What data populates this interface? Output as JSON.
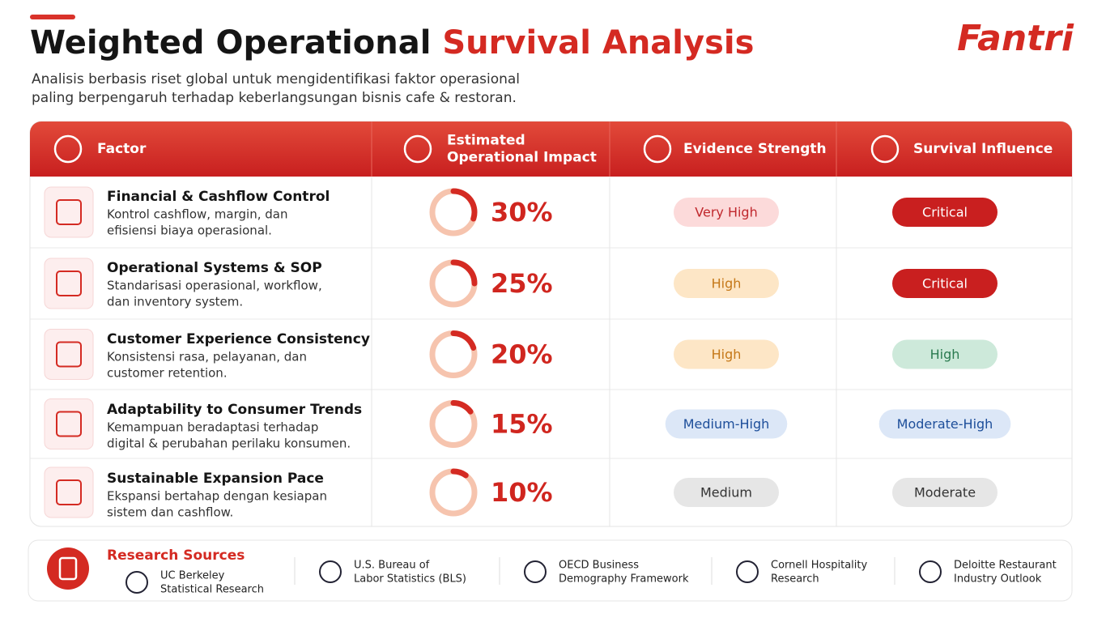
{
  "header": {
    "title_dark": "Weighted Operational",
    "title_red": "Survival Analysis",
    "subtitle_lines": [
      "Analisis berbasis riset global untuk mengidentifikasi faktor operasional",
      "paling berpengaruh terhadap keberlangsungan bisnis cafe & restoran."
    ],
    "logo": "Fantri"
  },
  "table": {
    "columns": [
      [
        "Factor"
      ],
      [
        "Estimated",
        "Operational Impact"
      ],
      [
        "Evidence Strength"
      ],
      [
        "Survival Influence"
      ]
    ],
    "rows": [
      {
        "factor": "Financial & Cashflow Control",
        "description": [
          "Kontrol cashflow, margin, dan",
          "efisiensi biaya operasional."
        ],
        "impact": {
          "value": 30,
          "label": "30%"
        },
        "evidence": {
          "label": "Very High",
          "color": "#fcdada",
          "text_color": "#c0282d"
        },
        "influence": {
          "label": "Critical",
          "color": "#c91f1f",
          "text_color": "#ffffff"
        }
      },
      {
        "factor": "Operational Systems & SOP",
        "description": [
          "Standarisasi operasional, workflow,",
          "dan inventory system."
        ],
        "impact": {
          "value": 25,
          "label": "25%"
        },
        "evidence": {
          "label": "High",
          "color": "#fde6c6",
          "text_color": "#c57818"
        },
        "influence": {
          "label": "Critical",
          "color": "#c91f1f",
          "text_color": "#ffffff"
        }
      },
      {
        "factor": "Customer Experience Consistency",
        "description": [
          "Konsistensi rasa, pelayanan, dan",
          "customer retention."
        ],
        "impact": {
          "value": 20,
          "label": "20%"
        },
        "evidence": {
          "label": "High",
          "color": "#fde6c6",
          "text_color": "#c57818"
        },
        "influence": {
          "label": "High",
          "color": "#cde9da",
          "text_color": "#2a7a4f"
        }
      },
      {
        "factor": "Adaptability to Consumer Trends",
        "description": [
          "Kemampuan beradaptasi terhadap",
          "digital & perubahan perilaku konsumen."
        ],
        "impact": {
          "value": 15,
          "label": "15%"
        },
        "evidence": {
          "label": "Medium-High",
          "color": "#dce7f7",
          "text_color": "#1d4e9a"
        },
        "influence": {
          "label": "Moderate-High",
          "color": "#dce7f7",
          "text_color": "#1d4e9a"
        }
      },
      {
        "factor": "Sustainable Expansion Pace",
        "description": [
          "Ekspansi bertahap dengan kesiapan",
          "sistem dan cashflow."
        ],
        "impact": {
          "value": 10,
          "label": "10%"
        },
        "evidence": {
          "label": "Medium",
          "color": "#e6e6e6",
          "text_color": "#333333"
        },
        "influence": {
          "label": "Moderate",
          "color": "#e6e6e6",
          "text_color": "#333333"
        }
      }
    ]
  },
  "sources": {
    "title": "Research Sources",
    "items": [
      [
        "UC Berkeley",
        "Statistical Research"
      ],
      [
        "U.S. Bureau of",
        "Labor Statistics (BLS)"
      ],
      [
        "OECD Business",
        "Demography Framework"
      ],
      [
        "Cornell Hospitality",
        "Research"
      ],
      [
        "Deloitte Restaurant",
        "Industry Outlook"
      ]
    ]
  }
}
